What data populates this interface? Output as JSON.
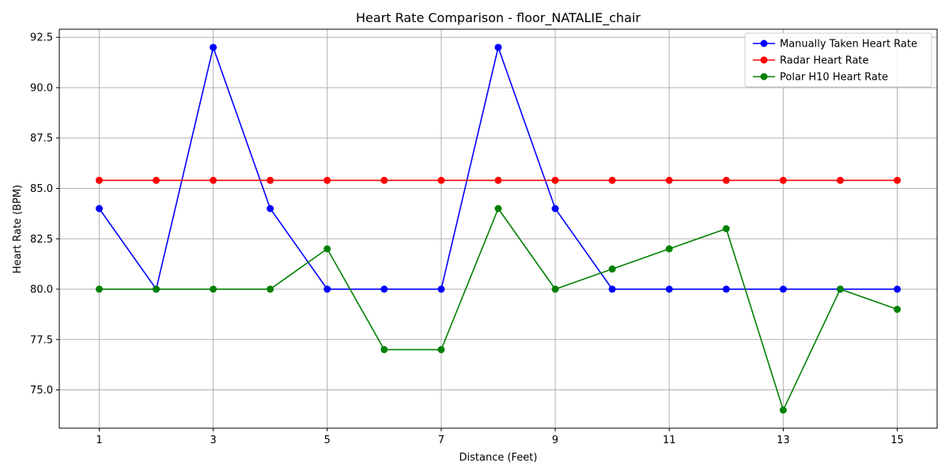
{
  "chart_data": {
    "type": "line",
    "title": "Heart Rate Comparison - floor_NATALIE_chair",
    "xlabel": "Distance (Feet)",
    "ylabel": "Heart Rate (BPM)",
    "x": [
      1,
      2,
      3,
      4,
      5,
      6,
      7,
      8,
      9,
      10,
      11,
      12,
      13,
      14,
      15
    ],
    "xticks": [
      1,
      3,
      5,
      7,
      9,
      11,
      13,
      15
    ],
    "xtick_labels": [
      "1",
      "3",
      "5",
      "7",
      "9",
      "11",
      "13",
      "15"
    ],
    "yticks": [
      75.0,
      77.5,
      80.0,
      82.5,
      85.0,
      87.5,
      90.0,
      92.5
    ],
    "ytick_labels": [
      "75.0",
      "77.5",
      "80.0",
      "82.5",
      "85.0",
      "87.5",
      "90.0",
      "92.5"
    ],
    "xlim": [
      0.3,
      15.7
    ],
    "ylim": [
      73.1,
      92.9
    ],
    "grid": true,
    "legend_position": "upper right",
    "series": [
      {
        "name": "Manually Taken Heart Rate",
        "color": "#0000ff",
        "values": [
          84,
          80,
          92,
          84,
          80,
          80,
          80,
          92,
          84,
          80,
          80,
          80,
          80,
          80,
          80
        ]
      },
      {
        "name": "Radar Heart Rate",
        "color": "#ff0000",
        "values": [
          85.4,
          85.4,
          85.4,
          85.4,
          85.4,
          85.4,
          85.4,
          85.4,
          85.4,
          85.4,
          85.4,
          85.4,
          85.4,
          85.4,
          85.4
        ]
      },
      {
        "name": "Polar H10 Heart Rate",
        "color": "#008000",
        "values": [
          80,
          80,
          80,
          80,
          82,
          77,
          77,
          84,
          80,
          81,
          82,
          83,
          74,
          80,
          79
        ]
      }
    ]
  }
}
